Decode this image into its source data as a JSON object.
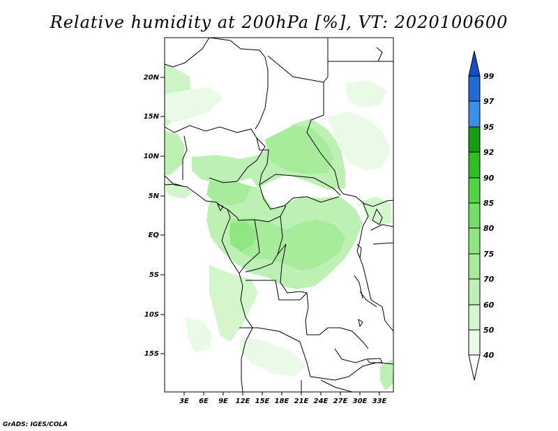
{
  "title": "Relative humidity at 200hPa [%], VT: 2020100600",
  "footer": "GrADS: IGES/COLA",
  "map": {
    "lat_labels": [
      "20N",
      "15N",
      "10N",
      "5N",
      "EQ",
      "5S",
      "10S",
      "15S"
    ],
    "lon_labels": [
      "3E",
      "6E",
      "9E",
      "12E",
      "15E",
      "18E",
      "21E",
      "24E",
      "27E",
      "30E",
      "33E"
    ]
  },
  "colorbar": {
    "levels": [
      "40",
      "50",
      "60",
      "70",
      "75",
      "80",
      "85",
      "90",
      "92",
      "95",
      "97",
      "99"
    ],
    "colors": [
      "#e9fbe6",
      "#d3f6cd",
      "#bdf1b4",
      "#a6ec9b",
      "#8fe782",
      "#73de66",
      "#52d446",
      "#2ebf24",
      "#189a12",
      "#0a8a08",
      "#3b8fe6",
      "#2169d4",
      "#1050c0"
    ]
  },
  "chart_data": {
    "type": "heatmap",
    "title": "Relative humidity at 200hPa [%], VT: 2020100600",
    "variable": "Relative humidity",
    "units": "%",
    "level": "200hPa",
    "valid_time": "2020100600",
    "lon_range": [
      0,
      34
    ],
    "lat_range": [
      -20,
      25
    ],
    "contour_levels": [
      40,
      50,
      60,
      70,
      75,
      80,
      85,
      90,
      92,
      95,
      97,
      99
    ]
  }
}
